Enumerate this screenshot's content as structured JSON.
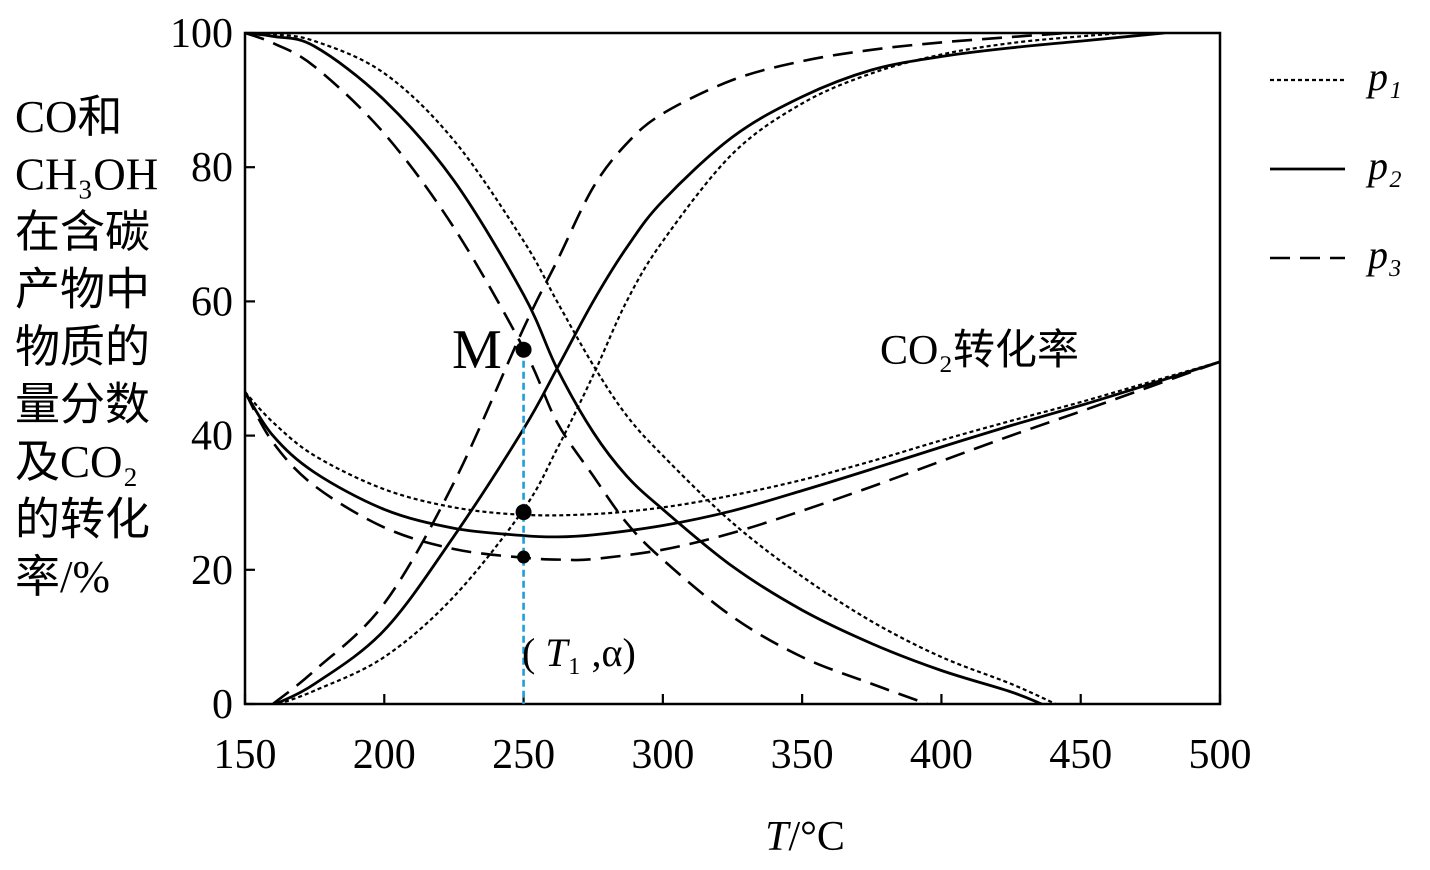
{
  "chart_data": {
    "type": "line",
    "title": "",
    "xlabel": "T/°C",
    "ylabel": [
      "CO和",
      "CH₃OH",
      "在含碳",
      "产物中",
      "物质的",
      "量分数",
      "及CO₂",
      "的转化",
      "率/%"
    ],
    "xlim": [
      150,
      500
    ],
    "ylim": [
      0,
      100
    ],
    "xticks": [
      150,
      200,
      250,
      300,
      350,
      400,
      450,
      500
    ],
    "yticks": [
      0,
      20,
      40,
      60,
      80,
      100
    ],
    "grid": false,
    "legend": "right",
    "curve_color": "#000000",
    "series": [
      {
        "name": "p₁",
        "line_style": "dotted",
        "curves": [
          [
            [
              150,
              100
            ],
            [
              160,
              99.8
            ],
            [
              175,
              98.8
            ],
            [
              200,
              94
            ],
            [
              225,
              84
            ],
            [
              250,
              69
            ],
            [
              262,
              60
            ],
            [
              275,
              50.5
            ],
            [
              287,
              43
            ],
            [
              300,
              37
            ],
            [
              325,
              27
            ],
            [
              350,
              19
            ],
            [
              375,
              12.3
            ],
            [
              400,
              7
            ],
            [
              425,
              3
            ],
            [
              441,
              0
            ]
          ],
          [
            [
              162,
              0
            ],
            [
              175,
              2
            ],
            [
              200,
              7
            ],
            [
              225,
              16
            ],
            [
              250,
              29
            ],
            [
              262,
              38
            ],
            [
              275,
              49
            ],
            [
              287,
              60
            ],
            [
              300,
              69
            ],
            [
              325,
              82
            ],
            [
              350,
              89.5
            ],
            [
              375,
              94
            ],
            [
              400,
              96.8
            ],
            [
              425,
              98.5
            ],
            [
              450,
              99.5
            ],
            [
              465,
              100
            ]
          ],
          [
            [
              150,
              46.5
            ],
            [
              160,
              42
            ],
            [
              175,
              37
            ],
            [
              200,
              32
            ],
            [
              225,
              29.3
            ],
            [
              250,
              28.2
            ],
            [
              275,
              28.3
            ],
            [
              300,
              29.3
            ],
            [
              325,
              31.1
            ],
            [
              350,
              33.4
            ],
            [
              375,
              36.2
            ],
            [
              400,
              39.3
            ],
            [
              425,
              42.2
            ],
            [
              450,
              45
            ],
            [
              475,
              48
            ],
            [
              500,
              51
            ]
          ]
        ]
      },
      {
        "name": "p₂",
        "line_style": "solid",
        "curves": [
          [
            [
              150,
              100
            ],
            [
              160,
              99.5
            ],
            [
              175,
              98
            ],
            [
              200,
              90
            ],
            [
              225,
              78
            ],
            [
              250,
              61
            ],
            [
              262,
              50
            ],
            [
              275,
              40.5
            ],
            [
              287,
              34
            ],
            [
              300,
              29
            ],
            [
              325,
              20.5
            ],
            [
              350,
              14
            ],
            [
              375,
              9
            ],
            [
              400,
              5
            ],
            [
              425,
              1.8
            ],
            [
              436,
              0
            ]
          ],
          [
            [
              161,
              0
            ],
            [
              175,
              3
            ],
            [
              200,
              11
            ],
            [
              225,
              25
            ],
            [
              250,
              41
            ],
            [
              262,
              50
            ],
            [
              275,
              60
            ],
            [
              287,
              68
            ],
            [
              300,
              75
            ],
            [
              325,
              84.5
            ],
            [
              350,
              90.5
            ],
            [
              375,
              94.5
            ],
            [
              400,
              96.5
            ],
            [
              425,
              97.8
            ],
            [
              450,
              98.8
            ],
            [
              470,
              99.6
            ],
            [
              480,
              100
            ]
          ],
          [
            [
              150,
              46.5
            ],
            [
              160,
              40
            ],
            [
              175,
              34.5
            ],
            [
              200,
              29
            ],
            [
              225,
              26.2
            ],
            [
              250,
              25.1
            ],
            [
              262,
              24.9
            ],
            [
              275,
              25.2
            ],
            [
              300,
              26.6
            ],
            [
              325,
              28.8
            ],
            [
              350,
              31.8
            ],
            [
              375,
              35
            ],
            [
              400,
              38.3
            ],
            [
              425,
              41.5
            ],
            [
              450,
              44.5
            ],
            [
              475,
              47.7
            ],
            [
              500,
              51
            ]
          ]
        ]
      },
      {
        "name": "p₃",
        "line_style": "dashed",
        "curves": [
          [
            [
              150,
              100
            ],
            [
              160,
              98.5
            ],
            [
              175,
              95
            ],
            [
              200,
              85
            ],
            [
              225,
              71
            ],
            [
              250,
              53
            ],
            [
              262,
              42
            ],
            [
              275,
              34
            ],
            [
              287,
              27
            ],
            [
              300,
              21.5
            ],
            [
              325,
              13
            ],
            [
              350,
              7
            ],
            [
              375,
              3
            ],
            [
              395,
              0
            ]
          ],
          [
            [
              160,
              0
            ],
            [
              175,
              5
            ],
            [
              200,
              15
            ],
            [
              225,
              33
            ],
            [
              250,
              56
            ],
            [
              262,
              66
            ],
            [
              275,
              77
            ],
            [
              287,
              83.5
            ],
            [
              300,
              88
            ],
            [
              325,
              93
            ],
            [
              350,
              95.8
            ],
            [
              375,
              97.5
            ],
            [
              400,
              98.6
            ],
            [
              425,
              99.4
            ],
            [
              445,
              100
            ]
          ],
          [
            [
              150,
              46.5
            ],
            [
              160,
              39
            ],
            [
              175,
              32.5
            ],
            [
              200,
              26.3
            ],
            [
              225,
              23.1
            ],
            [
              250,
              21.8
            ],
            [
              265,
              21.5
            ],
            [
              275,
              21.6
            ],
            [
              300,
              23
            ],
            [
              325,
              25.5
            ],
            [
              350,
              28.8
            ],
            [
              375,
              32.4
            ],
            [
              400,
              36.2
            ],
            [
              425,
              40
            ],
            [
              450,
              43.6
            ],
            [
              475,
              47.3
            ],
            [
              500,
              51
            ]
          ]
        ]
      }
    ],
    "highlight_points": [
      {
        "label": "M",
        "x": 250,
        "y": 52.8
      },
      {
        "x": 250,
        "y": 28.6
      },
      {
        "x": 250,
        "y": 21.9
      }
    ],
    "reference_line": {
      "x": 250,
      "label": "( T₁ ,α)",
      "color": "#1e9fd9"
    },
    "curve_label": "CO₂转化率"
  }
}
